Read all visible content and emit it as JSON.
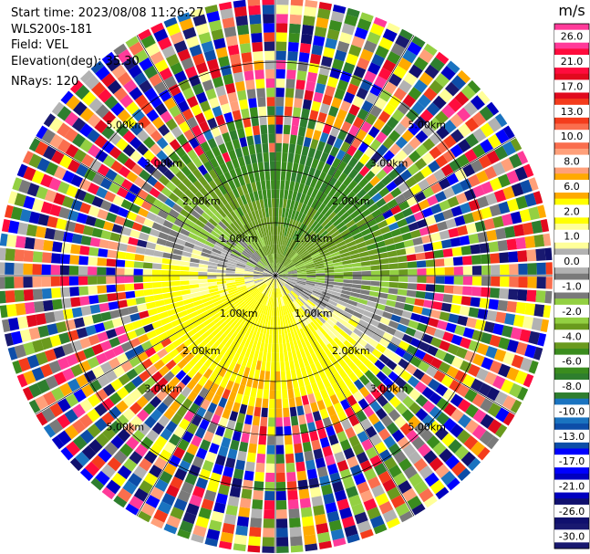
{
  "header": {
    "start_time": "Start time: 2023/08/08 11:26:27",
    "instrument": "WLS200s-181",
    "field": "Field: VEL",
    "elevation": "Elevation(deg): 35.30",
    "nrays": "NRays: 120"
  },
  "chart_data": {
    "type": "heatmap",
    "projection": "polar-ppi",
    "field": "VEL",
    "elevation_deg": 35.3,
    "n_rays": 120,
    "range_ring_labels": [
      "1.00km",
      "2.00km",
      "3.00km",
      "5.00km"
    ],
    "colorbar": {
      "unit": "m/s",
      "tick_labels": [
        "26.0",
        "21.0",
        "17.0",
        "13.0",
        "10.0",
        "8.0",
        "6.0",
        "2.0",
        "1.0",
        "0.0",
        "-1.0",
        "-2.0",
        "-4.0",
        "-6.0",
        "-8.0",
        "-10.0",
        "-13.0",
        "-17.0",
        "-21.0",
        "-26.0",
        "-30.0"
      ],
      "colors": [
        "#ff3a99",
        "#ff0c3d",
        "#e10a1e",
        "#f43c1c",
        "#fa6e4e",
        "#ffa07a",
        "#ffaa00",
        "#ffff00",
        "#ffff99",
        "#b2b2b2",
        "#7a7a7a",
        "#93d042",
        "#6a9a1e",
        "#3a8c1e",
        "#2e7e2e",
        "#1a73c0",
        "#0d4da8",
        "#0000ff",
        "#0000c0",
        "#10106e",
        "#191970"
      ]
    }
  }
}
